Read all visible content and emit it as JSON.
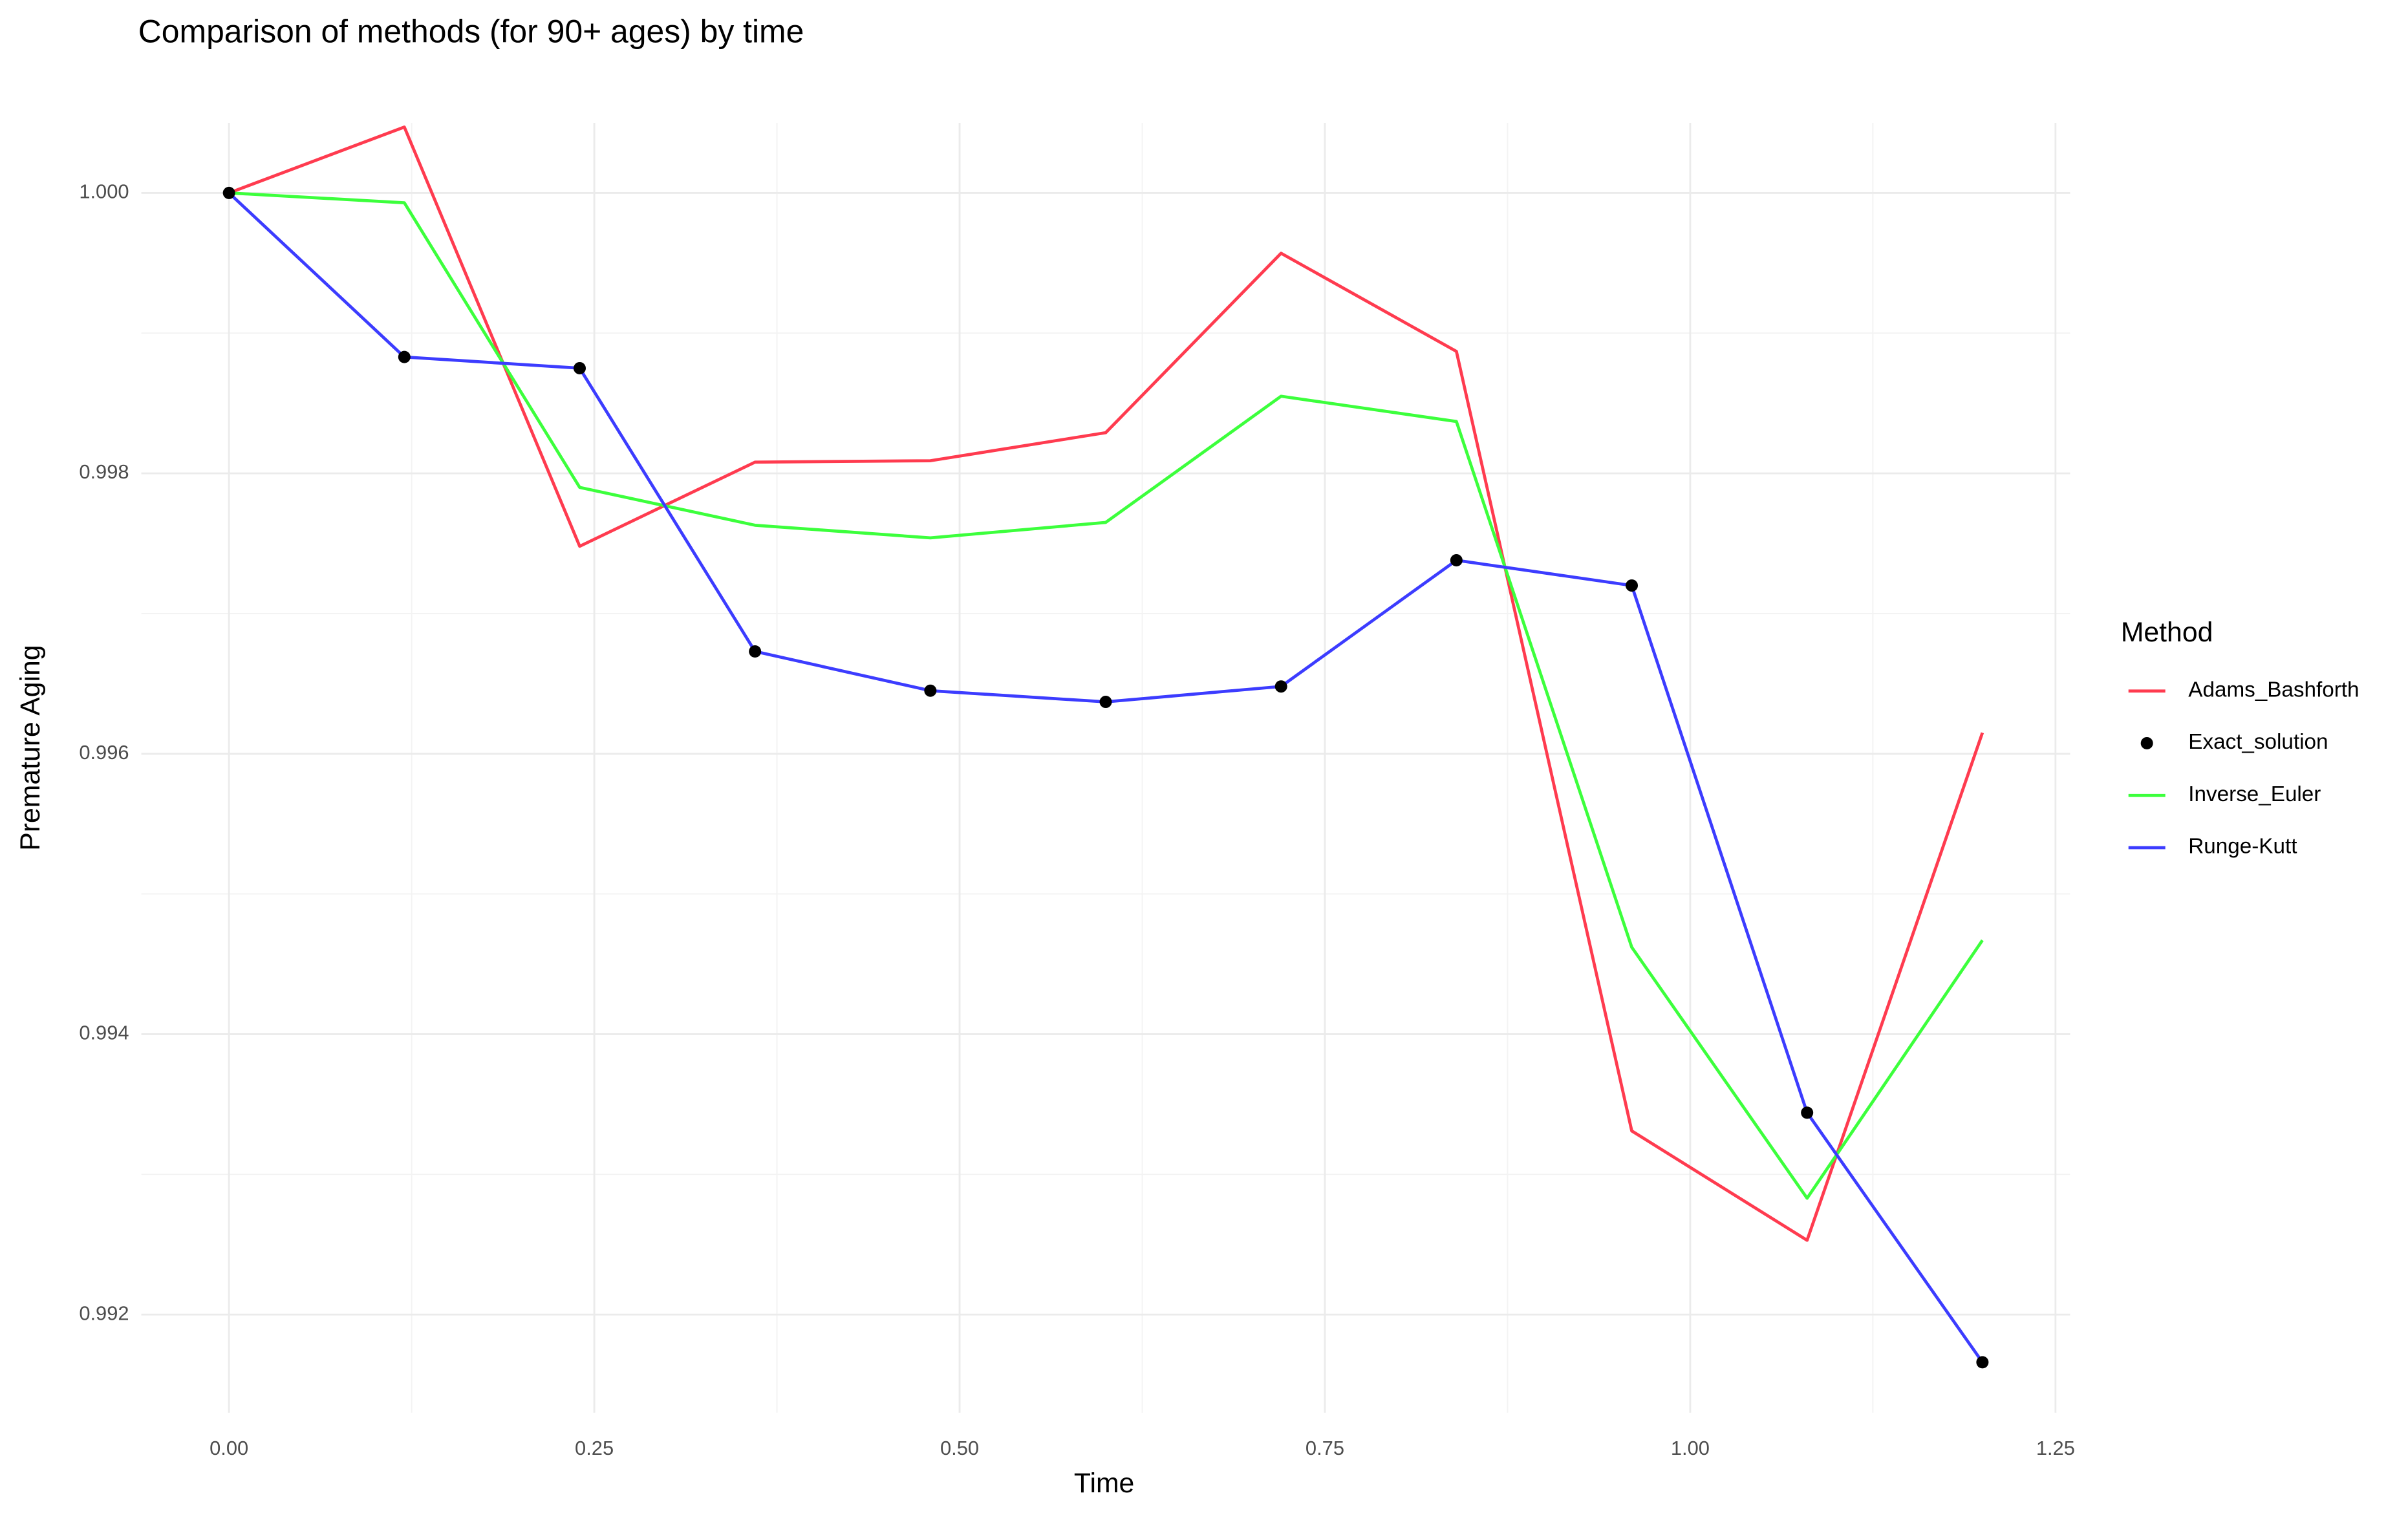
{
  "chart_data": {
    "type": "line",
    "title": "Comparison of methods (for 90+ ages) by time",
    "x_label": "Time",
    "y_label": "Premature Aging",
    "legend_title": "Method",
    "legend_position": "right",
    "x": [
      0,
      0.12,
      0.24,
      0.36,
      0.48,
      0.6,
      0.72,
      0.84,
      0.96,
      1.08,
      1.2
    ],
    "series": [
      {
        "name": "Adams_Bashforth",
        "color": "#ff3b4f",
        "mode": "lines",
        "values": [
          1.0,
          1.00047,
          0.99748,
          0.99808,
          0.99809,
          0.99829,
          0.99957,
          0.99887,
          0.99331,
          0.99253,
          0.99615
        ]
      },
      {
        "name": "Exact_solution",
        "color": "#000000",
        "mode": "markers",
        "values": [
          1.0,
          0.99883,
          0.99875,
          0.99673,
          0.99645,
          0.99637,
          0.99648,
          0.99738,
          0.9972,
          0.99344,
          0.99166
        ]
      },
      {
        "name": "Inverse_Euler",
        "color": "#3cff3c",
        "mode": "lines",
        "values": [
          1.0,
          0.99993,
          0.9979,
          0.99763,
          0.99754,
          0.99765,
          0.99855,
          0.99837,
          0.99462,
          0.99283,
          0.99467
        ]
      },
      {
        "name": "Runge-Kutt",
        "color": "#3c3cff",
        "mode": "lines",
        "values": [
          1.0,
          0.99883,
          0.99875,
          0.99673,
          0.99645,
          0.99637,
          0.99648,
          0.99738,
          0.9972,
          0.99344,
          0.99166
        ]
      }
    ],
    "xlim": [
      -0.06,
      1.26
    ],
    "xticks": [
      {
        "value": 0,
        "label": "0.00"
      },
      0.25,
      {
        "value": 0.5,
        "label": "0.50"
      },
      0.75,
      {
        "value": 1,
        "label": "1.00"
      },
      1.25
    ],
    "ylim": [
      0.9913,
      1.0005
    ],
    "yticks": [
      0.992,
      0.994,
      0.996,
      0.998,
      {
        "value": 1,
        "label": "1.000"
      }
    ],
    "grid": true
  }
}
